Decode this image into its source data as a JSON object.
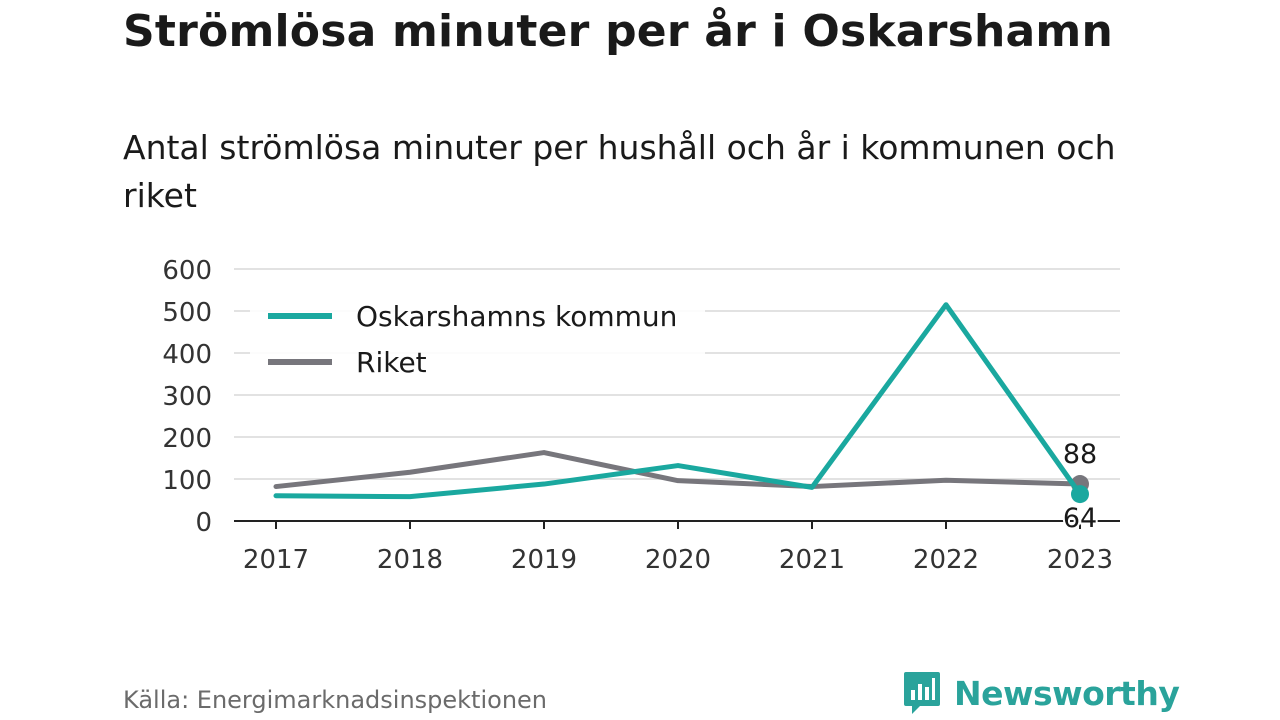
{
  "title": "Strömlösa minuter per år i Oskarshamn",
  "subtitle": "Antal strömlösa minuter per hushåll och år i kommunen och riket",
  "source": "Källa: Energimarknadsinspektionen",
  "brand": {
    "name": "Newsworthy",
    "icon": "newsworthy-logo-icon",
    "color": "#2aa39b"
  },
  "chart_data": {
    "type": "line",
    "categories": [
      "2017",
      "2018",
      "2019",
      "2020",
      "2021",
      "2022",
      "2023"
    ],
    "series": [
      {
        "name": "Oskarshamns kommun",
        "color": "#1aa89f",
        "values": [
          60,
          58,
          88,
          132,
          80,
          515,
          64
        ]
      },
      {
        "name": "Riket",
        "color": "#77767c",
        "values": [
          82,
          116,
          163,
          96,
          82,
          97,
          88
        ]
      }
    ],
    "ylim": [
      0,
      600
    ],
    "yticks": [
      "0",
      "100",
      "200",
      "300",
      "400",
      "500",
      "600"
    ],
    "grid": true,
    "legend": "top-left",
    "end_labels": [
      {
        "series": "Riket",
        "text": "88"
      },
      {
        "series": "Oskarshamns kommun",
        "text": "64"
      }
    ]
  }
}
